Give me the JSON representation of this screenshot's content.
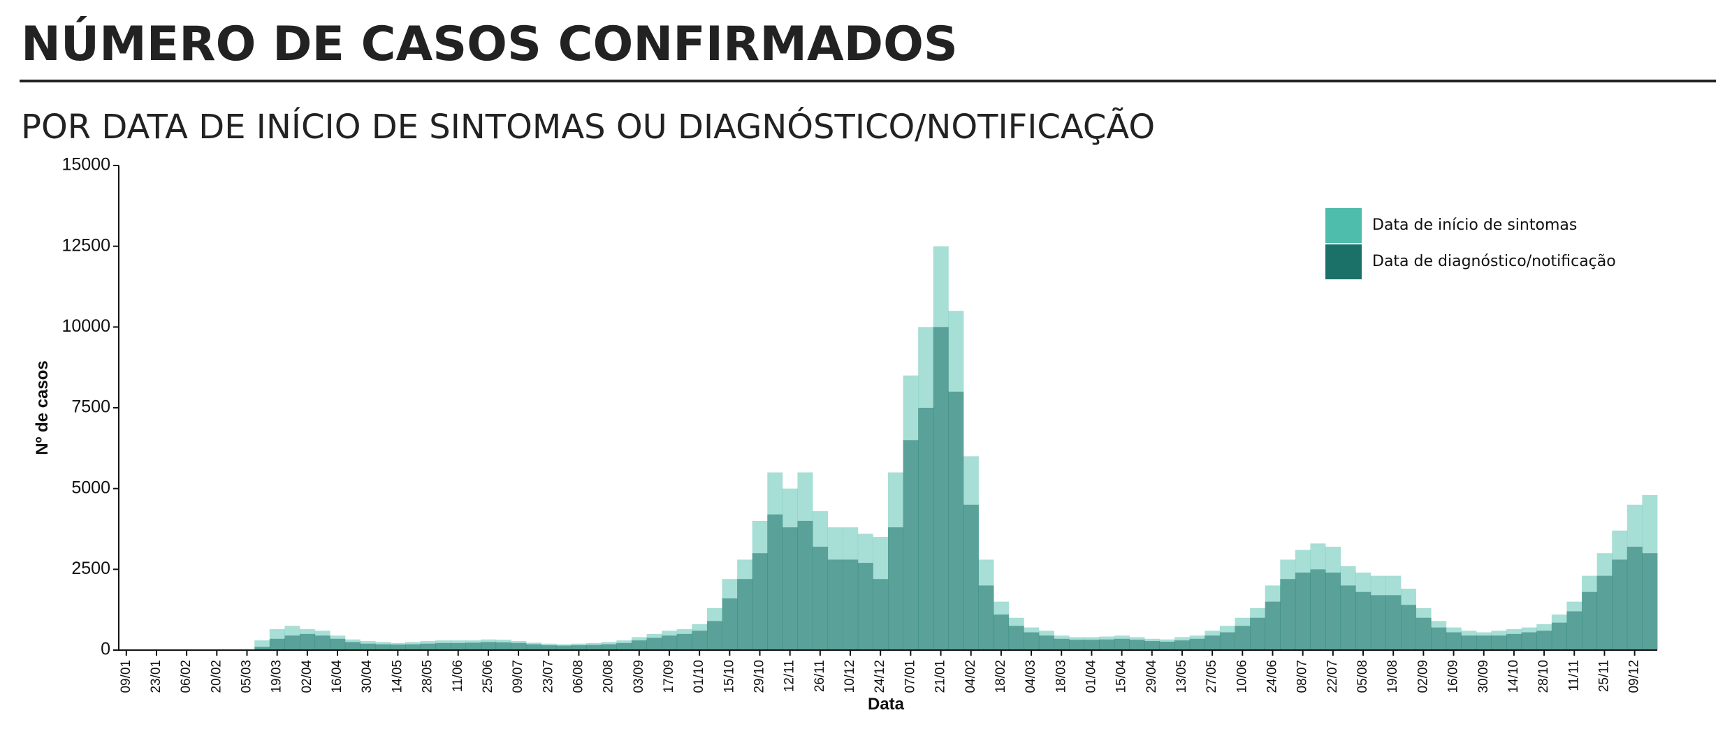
{
  "chart_data": {
    "type": "bar",
    "title": "NÚMERO DE CASOS CONFIRMADOS",
    "subtitle": "POR DATA DE INÍCIO DE SINTOMAS OU DIAGNÓSTICO/NOTIFICAÇÃO",
    "x_label": "Data",
    "y_label": "Nº de casos",
    "categories": [
      "09/01",
      null,
      "23/01",
      null,
      "06/02",
      null,
      "20/02",
      null,
      "05/03",
      null,
      "19/03",
      null,
      "02/04",
      null,
      "16/04",
      null,
      "30/04",
      null,
      "14/05",
      null,
      "28/05",
      null,
      "11/06",
      null,
      "25/06",
      null,
      "09/07",
      null,
      "23/07",
      null,
      "06/08",
      null,
      "20/08",
      null,
      "03/09",
      null,
      "17/09",
      null,
      "01/10",
      null,
      "15/10",
      null,
      "29/10",
      null,
      "12/11",
      null,
      "26/11",
      null,
      "10/12",
      null,
      "24/12",
      null,
      "07/01",
      null,
      "21/01",
      null,
      "04/02",
      null,
      "18/02",
      null,
      "04/03",
      null,
      "18/03",
      null,
      "01/04",
      null,
      "15/04",
      null,
      "29/04",
      null,
      "13/05",
      null,
      "27/05",
      null,
      "10/06",
      null,
      "24/06",
      null,
      "08/07",
      null,
      "22/07",
      null,
      "05/08",
      null,
      "19/08",
      null,
      "02/09",
      null,
      "16/09",
      null,
      "30/09",
      null,
      "14/10",
      null,
      "28/10",
      null,
      "11/11",
      null,
      "25/11",
      null,
      "09/12",
      null
    ],
    "series": [
      {
        "name": "Data de início de sintomas",
        "color": "#4fbdab",
        "values": [
          0,
          0,
          0,
          0,
          0,
          0,
          0,
          0,
          20,
          300,
          650,
          750,
          650,
          600,
          450,
          330,
          280,
          250,
          220,
          250,
          280,
          300,
          300,
          300,
          330,
          320,
          280,
          230,
          200,
          180,
          200,
          220,
          250,
          300,
          400,
          500,
          600,
          650,
          800,
          1300,
          2200,
          2800,
          4000,
          5500,
          5000,
          5500,
          4300,
          3800,
          3800,
          3600,
          3500,
          5500,
          8500,
          10000,
          12500,
          10500,
          6000,
          2800,
          1500,
          1000,
          700,
          600,
          450,
          400,
          400,
          420,
          450,
          400,
          350,
          330,
          400,
          450,
          600,
          750,
          1000,
          1300,
          2000,
          2800,
          3100,
          3300,
          3200,
          2600,
          2400,
          2300,
          2300,
          1900,
          1300,
          900,
          700,
          600,
          550,
          600,
          650,
          700,
          800,
          1100,
          1500,
          2300,
          3000,
          3700,
          4500,
          4800
        ]
      },
      {
        "name": "Data de diagnóstico/notificação",
        "color": "#1b7167",
        "values": [
          0,
          0,
          0,
          0,
          0,
          0,
          0,
          0,
          0,
          100,
          350,
          450,
          500,
          450,
          350,
          250,
          200,
          180,
          170,
          180,
          200,
          220,
          220,
          230,
          250,
          240,
          220,
          180,
          150,
          140,
          150,
          160,
          180,
          220,
          300,
          380,
          450,
          500,
          600,
          900,
          1600,
          2200,
          3000,
          4200,
          3800,
          4000,
          3200,
          2800,
          2800,
          2700,
          2200,
          3800,
          6500,
          7500,
          10000,
          8000,
          4500,
          2000,
          1100,
          750,
          550,
          450,
          350,
          320,
          320,
          330,
          350,
          320,
          280,
          260,
          300,
          350,
          450,
          550,
          750,
          1000,
          1500,
          2200,
          2400,
          2500,
          2400,
          2000,
          1800,
          1700,
          1700,
          1400,
          1000,
          700,
          550,
          450,
          450,
          450,
          500,
          550,
          600,
          850,
          1200,
          1800,
          2300,
          2800,
          3200,
          3000
        ]
      }
    ],
    "ylim": [
      0,
      15000
    ],
    "yticks": [
      0,
      2500,
      5000,
      7500,
      10000,
      12500,
      15000
    ],
    "grid": false,
    "legend": "top-right"
  }
}
